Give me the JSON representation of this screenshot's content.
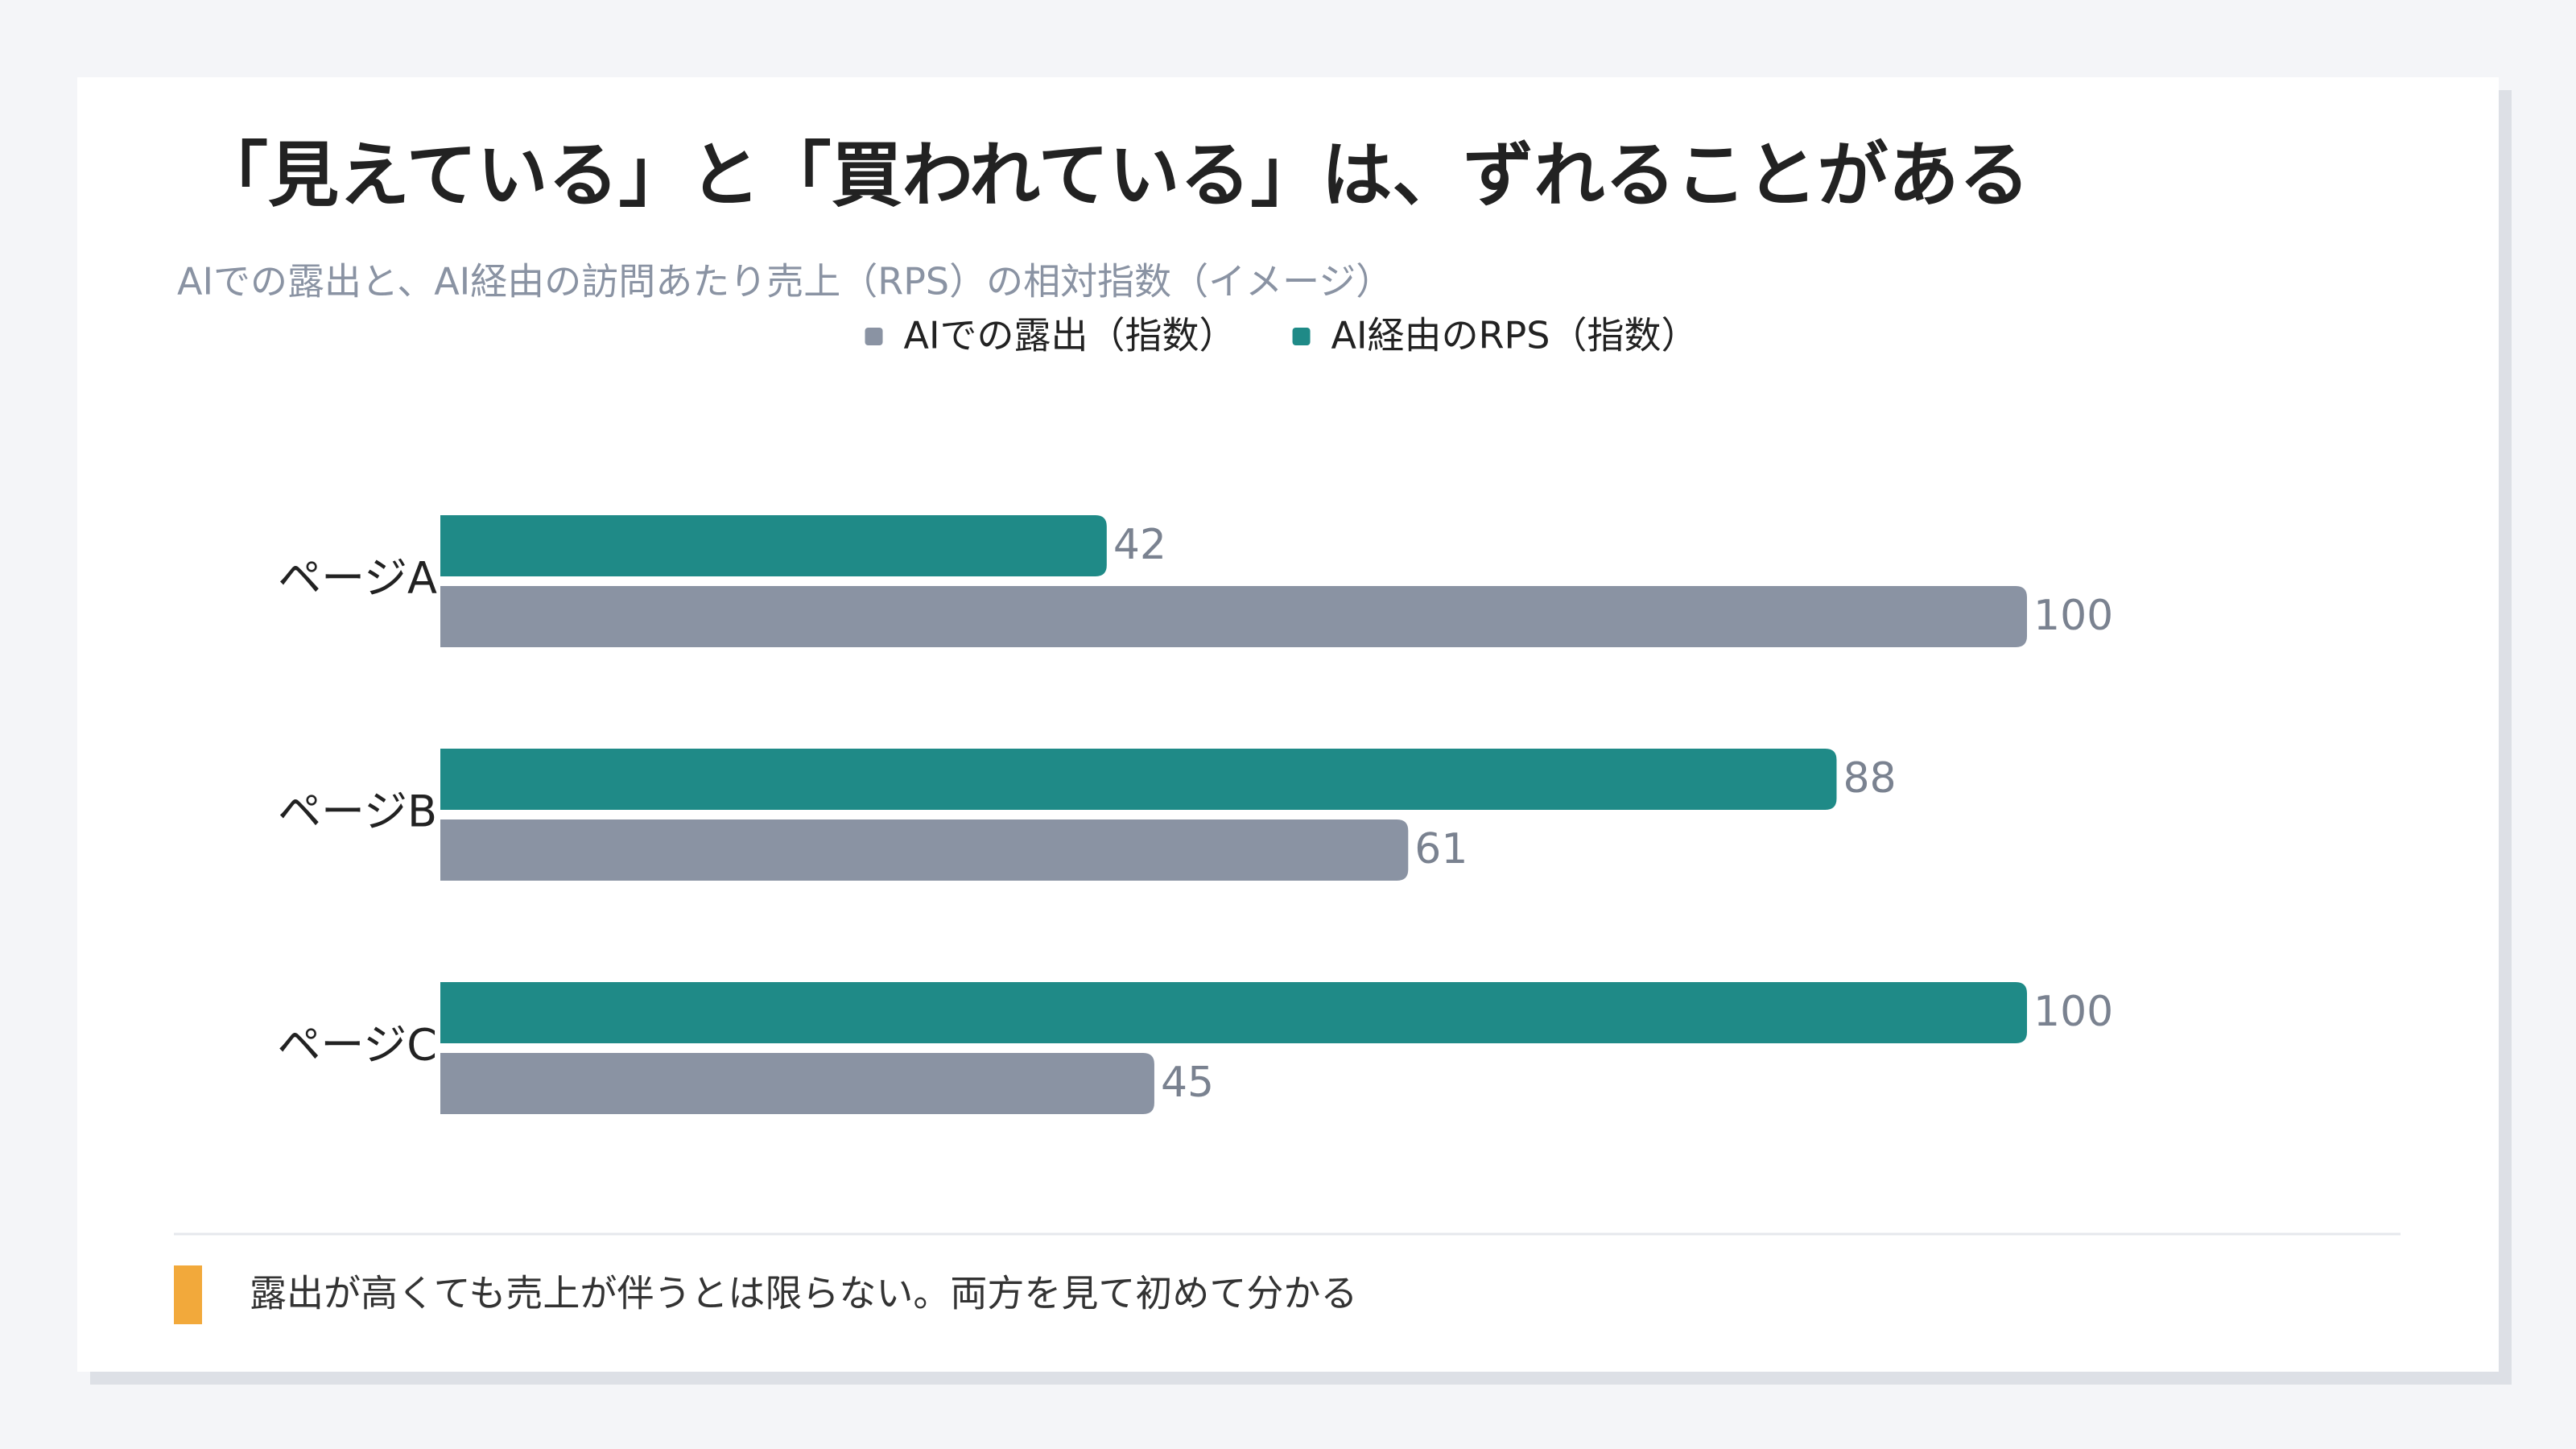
{
  "chart_data": {
    "type": "hbar",
    "title": "「見えている」と「買われている」は、ずれることがある",
    "subtitle": "AIでの露出と、AI経由の訪問あたり売上（RPS）の相対指数（イメージ）",
    "categories": [
      "ページA",
      "ページB",
      "ページC"
    ],
    "series": [
      {
        "name": "AIでの露出（指数）",
        "color": "#8a93a3",
        "values": [
          100,
          61,
          45
        ]
      },
      {
        "name": "AI経由のRPS（指数）",
        "color": "#1f8a87",
        "values": [
          42,
          88,
          100
        ]
      }
    ],
    "xlim": [
      0,
      100
    ],
    "legend": "top",
    "note": "露出が高くても売上が伴うとは限らない。両方を見て初めて分かる"
  }
}
